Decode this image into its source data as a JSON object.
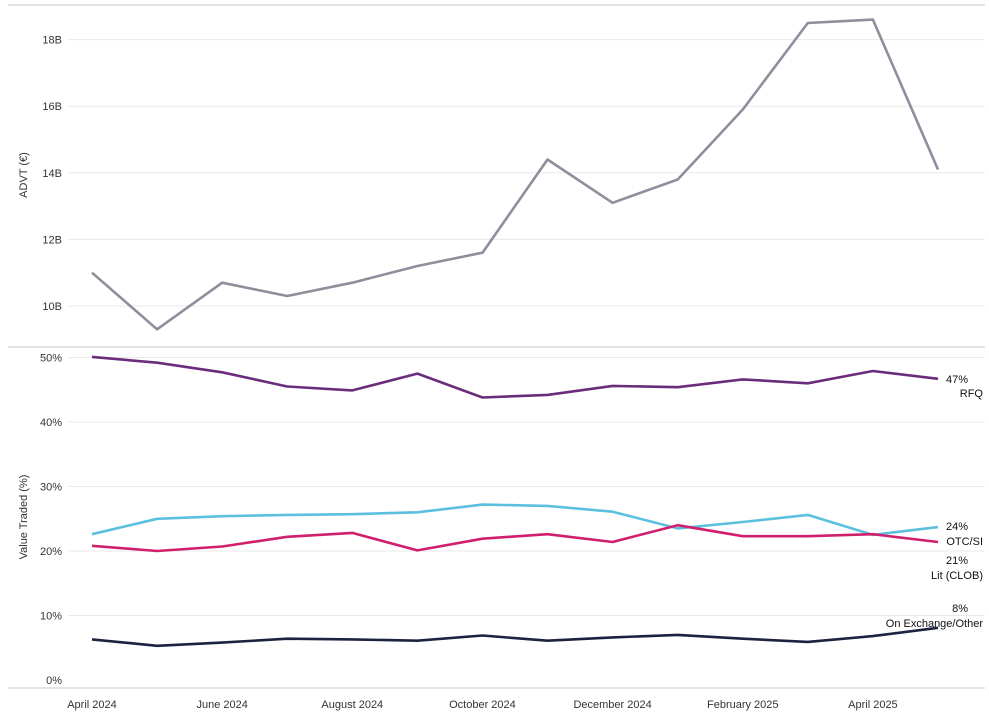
{
  "chart_data": [
    {
      "type": "line",
      "title": "",
      "xlabel": "",
      "ylabel": "ADVT (€)",
      "ylim": [
        8.9,
        19.1
      ],
      "yticks": [
        10,
        12,
        14,
        16,
        18
      ],
      "ytick_labels": [
        "10B",
        "12B",
        "14B",
        "16B",
        "18B"
      ],
      "grid": true,
      "x": [
        "April 2024",
        "May 2024",
        "June 2024",
        "July 2024",
        "August 2024",
        "September 2024",
        "October 2024",
        "November 2024",
        "December 2024",
        "January 2025",
        "February 2025",
        "March 2025",
        "April 2025",
        "May 2025"
      ],
      "series": [
        {
          "name": "",
          "color": "#8f8e9c",
          "values": [
            11.0,
            9.3,
            10.7,
            10.3,
            10.7,
            11.2,
            11.6,
            14.4,
            13.1,
            13.8,
            15.9,
            18.5,
            18.6,
            14.1
          ]
        }
      ]
    },
    {
      "type": "line",
      "title": "",
      "xlabel": "",
      "ylabel": "Value Traded (%)",
      "ylim": [
        0,
        52
      ],
      "yticks": [
        0,
        10,
        20,
        30,
        40,
        50
      ],
      "ytick_labels": [
        "0%",
        "10%",
        "20%",
        "30%",
        "40%",
        "50%"
      ],
      "grid": true,
      "x": [
        "April 2024",
        "May 2024",
        "June 2024",
        "July 2024",
        "August 2024",
        "September 2024",
        "October 2024",
        "November 2024",
        "December 2024",
        "January 2025",
        "February 2025",
        "March 2025",
        "April 2025",
        "May 2025"
      ],
      "xtick_labels": [
        "April 2024",
        "",
        "June 2024",
        "",
        "August 2024",
        "",
        "October 2024",
        "",
        "December 2024",
        "",
        "February 2025",
        "",
        "April 2025",
        ""
      ],
      "series": [
        {
          "name": "RFQ",
          "end_value_label": "47%",
          "color": "#6b2d7b",
          "values": [
            50.1,
            49.2,
            47.7,
            45.5,
            44.9,
            47.5,
            43.8,
            44.2,
            45.6,
            45.4,
            46.6,
            46.0,
            47.9,
            46.7
          ]
        },
        {
          "name": "OTC/SI",
          "end_value_label": "24%",
          "color": "#5bc0de",
          "values": [
            22.6,
            25.0,
            25.4,
            25.6,
            25.7,
            26.0,
            27.2,
            27.0,
            26.1,
            23.5,
            24.5,
            25.6,
            22.5,
            23.7
          ]
        },
        {
          "name": "Lit (CLOB)",
          "end_value_label": "21%",
          "color": "#d0206d",
          "values": [
            20.8,
            20.0,
            20.7,
            22.2,
            22.8,
            20.1,
            21.9,
            22.6,
            21.4,
            24.0,
            22.3,
            22.3,
            22.6,
            21.4
          ]
        },
        {
          "name": "On Exchange/Other",
          "end_value_label": "8%",
          "color": "#1c2340",
          "values": [
            6.3,
            5.3,
            5.8,
            6.4,
            6.3,
            6.1,
            6.9,
            6.1,
            6.6,
            7.0,
            6.4,
            5.9,
            6.8,
            8.1
          ]
        }
      ]
    }
  ]
}
